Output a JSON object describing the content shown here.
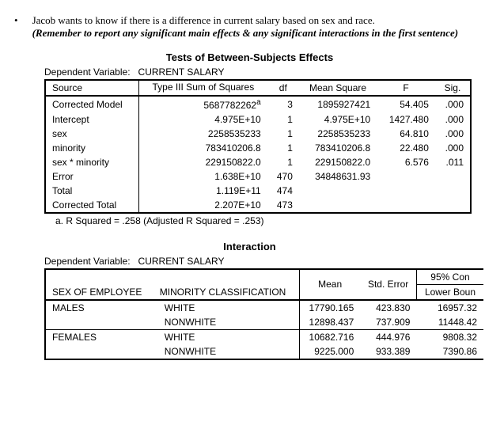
{
  "question": {
    "bullet": "•",
    "line1": "Jacob wants to know if there is a difference in current salary based on sex and race.",
    "paren": "(Remember to report any significant main effects & any significant interactions in the first sentence)"
  },
  "table1": {
    "title": "Tests of Between-Subjects Effects",
    "dep_label": "Dependent Variable:",
    "dep_value": "CURRENT SALARY",
    "headers": [
      "Source",
      "Type III Sum of Squares",
      "df",
      "Mean Square",
      "F",
      "Sig."
    ],
    "rows": [
      {
        "src": "Corrected Model",
        "ss": "5687782262",
        "sup": "a",
        "df": "3",
        "ms": "1895927421",
        "f": "54.405",
        "sig": ".000"
      },
      {
        "src": "Intercept",
        "ss": "4.975E+10",
        "df": "1",
        "ms": "4.975E+10",
        "f": "1427.480",
        "sig": ".000"
      },
      {
        "src": "sex",
        "ss": "2258535233",
        "df": "1",
        "ms": "2258535233",
        "f": "64.810",
        "sig": ".000"
      },
      {
        "src": "minority",
        "ss": "783410206.8",
        "df": "1",
        "ms": "783410206.8",
        "f": "22.480",
        "sig": ".000"
      },
      {
        "src": "sex * minority",
        "ss": "229150822.0",
        "df": "1",
        "ms": "229150822.0",
        "f": "6.576",
        "sig": ".011"
      },
      {
        "src": "Error",
        "ss": "1.638E+10",
        "df": "470",
        "ms": "34848631.93",
        "f": "",
        "sig": ""
      },
      {
        "src": "Total",
        "ss": "1.119E+11",
        "df": "474",
        "ms": "",
        "f": "",
        "sig": ""
      },
      {
        "src": "Corrected Total",
        "ss": "2.207E+10",
        "df": "473",
        "ms": "",
        "f": "",
        "sig": ""
      }
    ],
    "footnote": "a. R Squared = .258 (Adjusted R Squared = .253)"
  },
  "table2": {
    "title": "Interaction",
    "dep_label": "Dependent Variable:",
    "dep_value": "CURRENT SALARY",
    "headers": {
      "sex": "SEX OF EMPLOYEE",
      "minority": "MINORITY CLASSIFICATION",
      "mean": "Mean",
      "stderr": "Std. Error",
      "ci_top": "95% Con",
      "ci_lower": "Lower Boun"
    },
    "rows": [
      {
        "sex": "MALES",
        "min": "WHITE",
        "mean": "17790.165",
        "se": "423.830",
        "lb": "16957.32"
      },
      {
        "sex": "",
        "min": "NONWHITE",
        "mean": "12898.437",
        "se": "737.909",
        "lb": "11448.42"
      },
      {
        "sex": "FEMALES",
        "min": "WHITE",
        "mean": "10682.716",
        "se": "444.976",
        "lb": "9808.32"
      },
      {
        "sex": "",
        "min": "NONWHITE",
        "mean": "9225.000",
        "se": "933.389",
        "lb": "7390.86"
      }
    ]
  }
}
